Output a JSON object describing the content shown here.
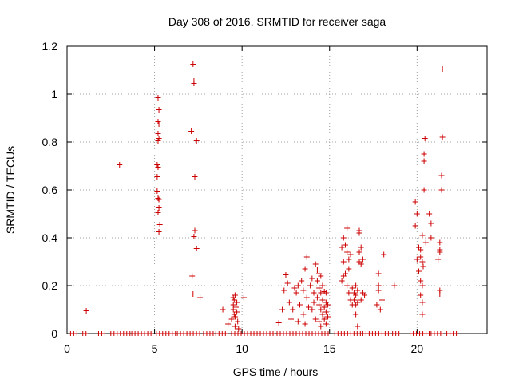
{
  "chart_data": {
    "type": "scatter",
    "title": "Day 308 of 2016, SRMTID for receiver saga",
    "xlabel": "GPS time / hours",
    "ylabel": "SRMTID / TECUs",
    "xlim": [
      0,
      24
    ],
    "ylim": [
      0,
      1.2
    ],
    "xticks": [
      0,
      5,
      10,
      15,
      20
    ],
    "yticks": [
      0,
      0.2,
      0.4,
      0.6,
      0.8,
      1,
      1.2
    ],
    "xtick_labels": [
      "0",
      "5",
      "10",
      "15",
      "20"
    ],
    "ytick_labels": [
      "0",
      "0.2",
      "0.4",
      "0.6",
      "0.8",
      "1",
      "1.2"
    ],
    "grid": true,
    "marker": "+",
    "marker_color": "#cc0000",
    "zero_line_segments": [
      [
        0.2,
        0.6
      ],
      [
        0.9,
        1.2
      ],
      [
        1.8,
        2.2
      ],
      [
        2.5,
        3.6
      ],
      [
        3.7,
        4.9
      ],
      [
        5.1,
        6.2
      ],
      [
        6.3,
        7.6
      ],
      [
        7.8,
        8.4
      ],
      [
        8.5,
        9.2
      ],
      [
        9.4,
        11.9
      ],
      [
        12.0,
        15.0
      ],
      [
        15.3,
        16.8
      ],
      [
        16.9,
        18.5
      ],
      [
        18.6,
        19.0
      ],
      [
        19.6,
        20.7
      ],
      [
        20.8,
        21.5
      ],
      [
        21.7,
        22.3
      ]
    ],
    "points": [
      {
        "x": 1.1,
        "y": 0.095
      },
      {
        "x": 3.0,
        "y": 0.705
      },
      {
        "x": 5.2,
        "y": 0.985
      },
      {
        "x": 5.25,
        "y": 0.935
      },
      {
        "x": 5.2,
        "y": 0.885
      },
      {
        "x": 5.25,
        "y": 0.875
      },
      {
        "x": 5.2,
        "y": 0.835
      },
      {
        "x": 5.25,
        "y": 0.815
      },
      {
        "x": 5.2,
        "y": 0.805
      },
      {
        "x": 5.15,
        "y": 0.705
      },
      {
        "x": 5.2,
        "y": 0.695
      },
      {
        "x": 5.15,
        "y": 0.655
      },
      {
        "x": 5.15,
        "y": 0.595
      },
      {
        "x": 5.2,
        "y": 0.565
      },
      {
        "x": 5.25,
        "y": 0.56
      },
      {
        "x": 5.25,
        "y": 0.525
      },
      {
        "x": 5.2,
        "y": 0.505
      },
      {
        "x": 5.3,
        "y": 0.455
      },
      {
        "x": 5.25,
        "y": 0.425
      },
      {
        "x": 7.2,
        "y": 1.125
      },
      {
        "x": 7.25,
        "y": 1.055
      },
      {
        "x": 7.25,
        "y": 1.045
      },
      {
        "x": 7.1,
        "y": 0.845
      },
      {
        "x": 7.4,
        "y": 0.805
      },
      {
        "x": 7.3,
        "y": 0.655
      },
      {
        "x": 7.3,
        "y": 0.43
      },
      {
        "x": 7.25,
        "y": 0.405
      },
      {
        "x": 7.4,
        "y": 0.355
      },
      {
        "x": 7.15,
        "y": 0.24
      },
      {
        "x": 7.2,
        "y": 0.165
      },
      {
        "x": 7.6,
        "y": 0.15
      },
      {
        "x": 8.9,
        "y": 0.1
      },
      {
        "x": 9.2,
        "y": 0.04
      },
      {
        "x": 9.4,
        "y": 0.06
      },
      {
        "x": 9.5,
        "y": 0.12
      },
      {
        "x": 9.5,
        "y": 0.15
      },
      {
        "x": 9.55,
        "y": 0.14
      },
      {
        "x": 9.5,
        "y": 0.1
      },
      {
        "x": 9.6,
        "y": 0.07
      },
      {
        "x": 9.6,
        "y": 0.03
      },
      {
        "x": 9.7,
        "y": 0.13
      },
      {
        "x": 9.7,
        "y": 0.09
      },
      {
        "x": 9.75,
        "y": 0.05
      },
      {
        "x": 9.8,
        "y": 0.02
      },
      {
        "x": 9.6,
        "y": 0.16
      },
      {
        "x": 9.65,
        "y": 0.11
      },
      {
        "x": 9.55,
        "y": 0.08
      },
      {
        "x": 10.1,
        "y": 0.15
      },
      {
        "x": 12.1,
        "y": 0.045
      },
      {
        "x": 12.3,
        "y": 0.1
      },
      {
        "x": 12.4,
        "y": 0.18
      },
      {
        "x": 12.5,
        "y": 0.245
      },
      {
        "x": 12.6,
        "y": 0.21
      },
      {
        "x": 12.7,
        "y": 0.13
      },
      {
        "x": 12.8,
        "y": 0.06
      },
      {
        "x": 12.9,
        "y": 0.1
      },
      {
        "x": 13.0,
        "y": 0.19
      },
      {
        "x": 13.1,
        "y": 0.17
      },
      {
        "x": 13.2,
        "y": 0.2
      },
      {
        "x": 13.2,
        "y": 0.05
      },
      {
        "x": 13.3,
        "y": 0.12
      },
      {
        "x": 13.4,
        "y": 0.22
      },
      {
        "x": 13.5,
        "y": 0.18
      },
      {
        "x": 13.5,
        "y": 0.08
      },
      {
        "x": 13.6,
        "y": 0.27
      },
      {
        "x": 13.7,
        "y": 0.32
      },
      {
        "x": 13.7,
        "y": 0.15
      },
      {
        "x": 13.8,
        "y": 0.11
      },
      {
        "x": 13.6,
        "y": 0.04
      },
      {
        "x": 13.9,
        "y": 0.2
      },
      {
        "x": 14.0,
        "y": 0.23
      },
      {
        "x": 14.0,
        "y": 0.1
      },
      {
        "x": 14.1,
        "y": 0.17
      },
      {
        "x": 14.1,
        "y": 0.13
      },
      {
        "x": 14.2,
        "y": 0.29
      },
      {
        "x": 14.2,
        "y": 0.06
      },
      {
        "x": 14.3,
        "y": 0.265
      },
      {
        "x": 14.3,
        "y": 0.22
      },
      {
        "x": 14.3,
        "y": 0.15
      },
      {
        "x": 14.4,
        "y": 0.25
      },
      {
        "x": 14.4,
        "y": 0.19
      },
      {
        "x": 14.4,
        "y": 0.12
      },
      {
        "x": 14.4,
        "y": 0.05
      },
      {
        "x": 14.5,
        "y": 0.24
      },
      {
        "x": 14.5,
        "y": 0.17
      },
      {
        "x": 14.5,
        "y": 0.1
      },
      {
        "x": 14.5,
        "y": 0.03
      },
      {
        "x": 14.6,
        "y": 0.2
      },
      {
        "x": 14.6,
        "y": 0.14
      },
      {
        "x": 14.6,
        "y": 0.08
      },
      {
        "x": 14.7,
        "y": 0.175
      },
      {
        "x": 14.7,
        "y": 0.11
      },
      {
        "x": 14.7,
        "y": 0.06
      },
      {
        "x": 14.8,
        "y": 0.17
      },
      {
        "x": 14.8,
        "y": 0.13
      },
      {
        "x": 14.8,
        "y": 0.09
      },
      {
        "x": 14.8,
        "y": 0.04
      },
      {
        "x": 14.9,
        "y": 0.12
      },
      {
        "x": 14.9,
        "y": 0.07
      },
      {
        "x": 15.7,
        "y": 0.36
      },
      {
        "x": 15.8,
        "y": 0.4
      },
      {
        "x": 15.8,
        "y": 0.3
      },
      {
        "x": 15.9,
        "y": 0.37
      },
      {
        "x": 15.9,
        "y": 0.25
      },
      {
        "x": 15.7,
        "y": 0.22
      },
      {
        "x": 15.8,
        "y": 0.24
      },
      {
        "x": 16.0,
        "y": 0.44
      },
      {
        "x": 16.0,
        "y": 0.34
      },
      {
        "x": 16.0,
        "y": 0.2
      },
      {
        "x": 16.1,
        "y": 0.31
      },
      {
        "x": 16.1,
        "y": 0.27
      },
      {
        "x": 16.1,
        "y": 0.17
      },
      {
        "x": 16.2,
        "y": 0.33
      },
      {
        "x": 16.2,
        "y": 0.14
      },
      {
        "x": 16.3,
        "y": 0.19
      },
      {
        "x": 16.3,
        "y": 0.12
      },
      {
        "x": 16.4,
        "y": 0.17
      },
      {
        "x": 16.4,
        "y": 0.14
      },
      {
        "x": 16.5,
        "y": 0.2
      },
      {
        "x": 16.5,
        "y": 0.16
      },
      {
        "x": 16.5,
        "y": 0.12
      },
      {
        "x": 16.6,
        "y": 0.18
      },
      {
        "x": 16.6,
        "y": 0.13
      },
      {
        "x": 16.7,
        "y": 0.43
      },
      {
        "x": 16.7,
        "y": 0.42
      },
      {
        "x": 16.7,
        "y": 0.34
      },
      {
        "x": 16.7,
        "y": 0.3
      },
      {
        "x": 16.8,
        "y": 0.36
      },
      {
        "x": 16.8,
        "y": 0.29
      },
      {
        "x": 16.5,
        "y": 0.08
      },
      {
        "x": 16.6,
        "y": 0.03
      },
      {
        "x": 16.9,
        "y": 0.17
      },
      {
        "x": 16.9,
        "y": 0.31
      },
      {
        "x": 16.8,
        "y": 0.14
      },
      {
        "x": 17.0,
        "y": 0.16
      },
      {
        "x": 17.7,
        "y": 0.12
      },
      {
        "x": 17.8,
        "y": 0.25
      },
      {
        "x": 17.8,
        "y": 0.2
      },
      {
        "x": 17.8,
        "y": 0.18
      },
      {
        "x": 17.9,
        "y": 0.1
      },
      {
        "x": 18.0,
        "y": 0.14
      },
      {
        "x": 18.1,
        "y": 0.33
      },
      {
        "x": 18.7,
        "y": 0.2
      },
      {
        "x": 19.9,
        "y": 0.45
      },
      {
        "x": 19.9,
        "y": 0.55
      },
      {
        "x": 20.0,
        "y": 0.5
      },
      {
        "x": 20.0,
        "y": 0.31
      },
      {
        "x": 20.1,
        "y": 0.36
      },
      {
        "x": 20.1,
        "y": 0.26
      },
      {
        "x": 20.2,
        "y": 0.35
      },
      {
        "x": 20.2,
        "y": 0.32
      },
      {
        "x": 20.2,
        "y": 0.22
      },
      {
        "x": 20.2,
        "y": 0.16
      },
      {
        "x": 20.3,
        "y": 0.41
      },
      {
        "x": 20.3,
        "y": 0.3
      },
      {
        "x": 20.3,
        "y": 0.2
      },
      {
        "x": 20.3,
        "y": 0.13
      },
      {
        "x": 20.3,
        "y": 0.08
      },
      {
        "x": 20.35,
        "y": 0.28
      },
      {
        "x": 20.4,
        "y": 0.6
      },
      {
        "x": 20.4,
        "y": 0.75
      },
      {
        "x": 20.4,
        "y": 0.72
      },
      {
        "x": 20.45,
        "y": 0.815
      },
      {
        "x": 20.5,
        "y": 0.38
      },
      {
        "x": 20.7,
        "y": 0.5
      },
      {
        "x": 20.8,
        "y": 0.46
      },
      {
        "x": 20.8,
        "y": 0.4
      },
      {
        "x": 21.2,
        "y": 0.31
      },
      {
        "x": 21.3,
        "y": 0.38
      },
      {
        "x": 21.3,
        "y": 0.35
      },
      {
        "x": 21.3,
        "y": 0.34
      },
      {
        "x": 21.3,
        "y": 0.18
      },
      {
        "x": 21.3,
        "y": 0.165
      },
      {
        "x": 21.4,
        "y": 0.66
      },
      {
        "x": 21.4,
        "y": 0.6
      },
      {
        "x": 21.45,
        "y": 0.82
      },
      {
        "x": 21.45,
        "y": 1.105
      }
    ]
  }
}
